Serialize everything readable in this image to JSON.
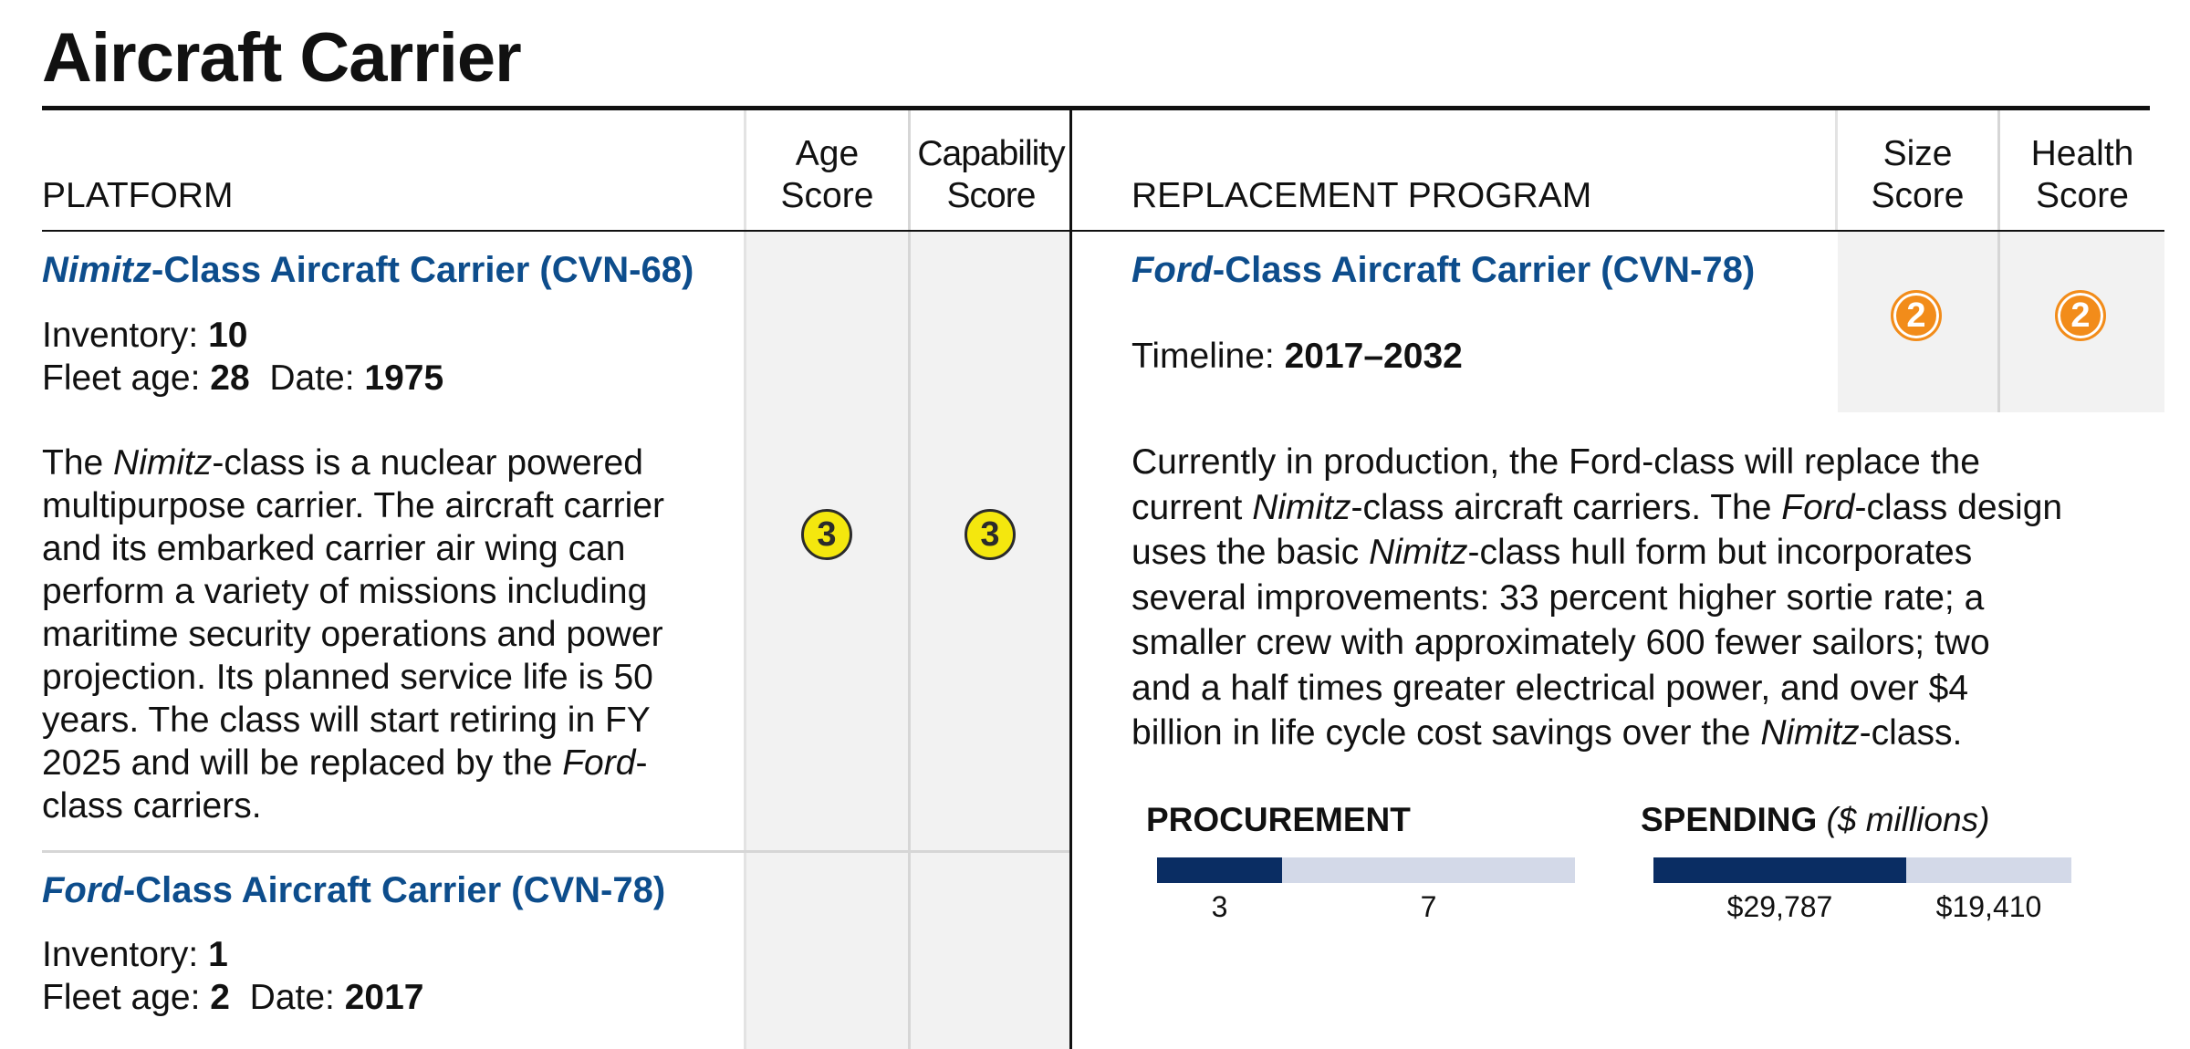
{
  "title": "Aircraft Carrier",
  "headers": {
    "platform": "PLATFORM",
    "age_score": [
      "Age",
      "Score"
    ],
    "capability_score": [
      "Capability",
      "Score"
    ],
    "replacement_program": "REPLACEMENT PROGRAM",
    "size_score": [
      "Size",
      "Score"
    ],
    "health_score": [
      "Health",
      "Score"
    ]
  },
  "platforms": [
    {
      "name_italic": "Nimitz",
      "name_rest": "-Class Aircraft Carrier (CVN-68)",
      "inventory_label": "Inventory: ",
      "inventory": "10",
      "fleet_age_label": "Fleet age: ",
      "fleet_age": "28",
      "date_label": "Date: ",
      "date": "1975",
      "description_lines": [
        "The |Nimitz|-class is a nuclear powered",
        "multipurpose carrier. The aircraft carrier",
        "and its embarked carrier air wing can",
        "perform a variety of missions including",
        "maritime security operations and power",
        "projection. Its planned service life is 50",
        "years. The class will start retiring in FY",
        "2025 and will be replaced by the |Ford|-",
        "class carriers."
      ],
      "age_score": "3",
      "capability_score": "3"
    },
    {
      "name_italic": "Ford",
      "name_rest": "-Class Aircraft Carrier (CVN-78)",
      "inventory_label": "Inventory: ",
      "inventory": "1",
      "fleet_age_label": "Fleet age: ",
      "fleet_age": "2",
      "date_label": "Date: ",
      "date": "2017"
    }
  ],
  "replacement": {
    "name_italic": "Ford",
    "name_rest": "-Class Aircraft Carrier (CVN-78)",
    "timeline_label": "Timeline: ",
    "timeline": "2017–2032",
    "size_score": "2",
    "health_score": "2",
    "description_lines": [
      "Currently in production, the Ford-class will replace the",
      "current |Nimitz|-class aircraft carriers. The |Ford|-class design",
      "uses the basic |Nimitz|-class hull form but incorporates",
      "several improvements: 33 percent higher sortie rate; a",
      "smaller crew with approximately 600 fewer sailors; two",
      "and a half times greater electrical power, and over $4",
      "billion in life cycle cost savings over the |Nimitz|-class."
    ],
    "procurement": {
      "label": "PROCUREMENT",
      "completed": 3,
      "remaining": 7,
      "completed_label": "3",
      "remaining_label": "7"
    },
    "spending": {
      "label": "SPENDING",
      "unit": "($ millions)",
      "spent": 29787,
      "remaining": 19410,
      "spent_label": "$29,787",
      "remaining_label": "$19,410"
    }
  },
  "colors": {
    "name_blue": "#0d4d8c",
    "bar_dark": "#0a2d63",
    "bar_light": "#d3d9e8",
    "badge_yellow": "#f4e70e",
    "badge_orange": "#f28c1a"
  }
}
